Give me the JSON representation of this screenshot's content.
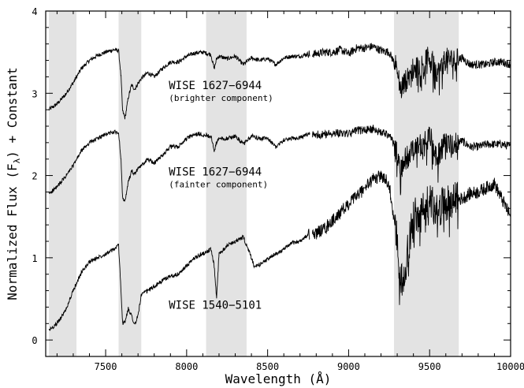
{
  "chart_data": {
    "type": "line",
    "xlabel": "Wavelength (Å)",
    "ylabel": "Normalized Flux (F",
    "ylabel_sub": "λ",
    "ylabel_tail": ") + Constant",
    "xlim": [
      7130,
      10000
    ],
    "ylim": [
      -0.2,
      4.0
    ],
    "x_ticks": [
      7500,
      8000,
      8500,
      9000,
      9500,
      10000
    ],
    "x_tick_labels": [
      "7500",
      "8000",
      "8500",
      "9000",
      "9500",
      "10000"
    ],
    "y_ticks": [
      0,
      1,
      2,
      3,
      4
    ],
    "y_tick_labels": [
      "0",
      "1",
      "2",
      "3",
      "4"
    ],
    "grid": false,
    "shaded_bands": [
      {
        "x0": 7150,
        "x1": 7320
      },
      {
        "x0": 7580,
        "x1": 7720
      },
      {
        "x0": 8120,
        "x1": 8370
      },
      {
        "x0": 9280,
        "x1": 9680
      }
    ],
    "annotations": [
      {
        "text": "WISE 1627−6944",
        "sub": "(brighter component)",
        "x": 7890,
        "y": 3.05
      },
      {
        "text": "WISE 1627−6944",
        "sub": "(fainter component)",
        "x": 7890,
        "y": 2.0
      },
      {
        "text": "WISE 1540−5101",
        "sub": "",
        "x": 7890,
        "y": 0.38
      }
    ],
    "series": [
      {
        "x": [
          7150,
          7200,
          7250,
          7300,
          7350,
          7400,
          7450,
          7500,
          7550,
          7580,
          7595,
          7605,
          7620,
          7640,
          7660,
          7680,
          7700,
          7720,
          7760,
          7800,
          7850,
          7900,
          7950,
          8000,
          8050,
          8100,
          8150,
          8170,
          8185,
          8200,
          8250,
          8300,
          8350,
          8400,
          8450,
          8500,
          8550,
          8600,
          8650,
          8700,
          8750,
          8800,
          8850,
          8900,
          8950,
          9000,
          9050,
          9100,
          9150,
          9200,
          9250,
          9300,
          9320,
          9350,
          9400,
          9450,
          9500,
          9550,
          9600,
          9650,
          9700,
          9750,
          9800,
          9850,
          9900,
          9950,
          10000
        ],
        "y": [
          2.8,
          2.87,
          2.98,
          3.13,
          3.3,
          3.4,
          3.46,
          3.5,
          3.53,
          3.52,
          3.2,
          2.78,
          2.7,
          2.95,
          3.1,
          3.05,
          3.12,
          3.18,
          3.25,
          3.2,
          3.3,
          3.38,
          3.38,
          3.45,
          3.49,
          3.5,
          3.47,
          3.3,
          3.42,
          3.45,
          3.42,
          3.45,
          3.35,
          3.43,
          3.4,
          3.42,
          3.35,
          3.43,
          3.45,
          3.45,
          3.48,
          3.48,
          3.5,
          3.5,
          3.53,
          3.48,
          3.55,
          3.55,
          3.57,
          3.52,
          3.5,
          3.3,
          3.05,
          3.15,
          3.3,
          3.35,
          3.45,
          3.25,
          3.42,
          3.4,
          3.43,
          3.35,
          3.35,
          3.35,
          3.38,
          3.38,
          3.35
        ]
      },
      {
        "x": [
          7150,
          7200,
          7250,
          7300,
          7350,
          7400,
          7450,
          7500,
          7550,
          7580,
          7595,
          7605,
          7620,
          7640,
          7660,
          7680,
          7700,
          7720,
          7760,
          7800,
          7850,
          7900,
          7950,
          8000,
          8050,
          8100,
          8150,
          8170,
          8185,
          8200,
          8250,
          8300,
          8350,
          8400,
          8450,
          8500,
          8550,
          8600,
          8650,
          8700,
          8750,
          8800,
          8850,
          8900,
          8950,
          9000,
          9050,
          9100,
          9150,
          9200,
          9250,
          9300,
          9320,
          9350,
          9400,
          9450,
          9500,
          9550,
          9600,
          9650,
          9700,
          9750,
          9800,
          9850,
          9900,
          9950,
          10000
        ],
        "y": [
          1.78,
          1.86,
          1.98,
          2.12,
          2.3,
          2.4,
          2.45,
          2.5,
          2.53,
          2.52,
          2.2,
          1.72,
          1.68,
          1.92,
          2.05,
          2.02,
          2.08,
          2.12,
          2.2,
          2.15,
          2.25,
          2.35,
          2.35,
          2.45,
          2.5,
          2.5,
          2.48,
          2.3,
          2.4,
          2.45,
          2.45,
          2.48,
          2.38,
          2.48,
          2.45,
          2.45,
          2.35,
          2.43,
          2.45,
          2.46,
          2.5,
          2.5,
          2.5,
          2.52,
          2.52,
          2.5,
          2.55,
          2.55,
          2.57,
          2.52,
          2.5,
          2.3,
          2.05,
          2.2,
          2.3,
          2.38,
          2.48,
          2.25,
          2.42,
          2.4,
          2.42,
          2.35,
          2.35,
          2.38,
          2.38,
          2.38,
          2.35
        ]
      },
      {
        "x": [
          7150,
          7200,
          7250,
          7300,
          7350,
          7400,
          7450,
          7500,
          7550,
          7580,
          7595,
          7605,
          7620,
          7640,
          7660,
          7680,
          7700,
          7720,
          7760,
          7800,
          7850,
          7900,
          7950,
          8000,
          8050,
          8100,
          8150,
          8170,
          8185,
          8200,
          8250,
          8300,
          8350,
          8400,
          8420,
          8450,
          8500,
          8550,
          8600,
          8650,
          8700,
          8750,
          8800,
          8850,
          8900,
          8950,
          9000,
          9050,
          9100,
          9150,
          9200,
          9250,
          9300,
          9320,
          9350,
          9400,
          9450,
          9500,
          9550,
          9600,
          9650,
          9700,
          9750,
          9800,
          9850,
          9900,
          9950,
          10000
        ],
        "y": [
          0.12,
          0.2,
          0.35,
          0.6,
          0.82,
          0.95,
          1.0,
          1.05,
          1.1,
          1.15,
          0.6,
          0.2,
          0.22,
          0.38,
          0.3,
          0.18,
          0.3,
          0.55,
          0.6,
          0.65,
          0.72,
          0.78,
          0.8,
          0.9,
          1.0,
          1.05,
          1.1,
          0.9,
          0.5,
          1.05,
          1.15,
          1.2,
          1.25,
          1.0,
          0.88,
          0.92,
          0.98,
          1.05,
          1.1,
          1.18,
          1.2,
          1.28,
          1.3,
          1.35,
          1.45,
          1.55,
          1.65,
          1.75,
          1.85,
          1.95,
          2.0,
          1.9,
          1.2,
          0.7,
          0.9,
          1.5,
          1.55,
          1.7,
          1.6,
          1.65,
          1.7,
          1.72,
          1.78,
          1.8,
          1.85,
          1.9,
          1.7,
          1.5
        ]
      }
    ]
  }
}
